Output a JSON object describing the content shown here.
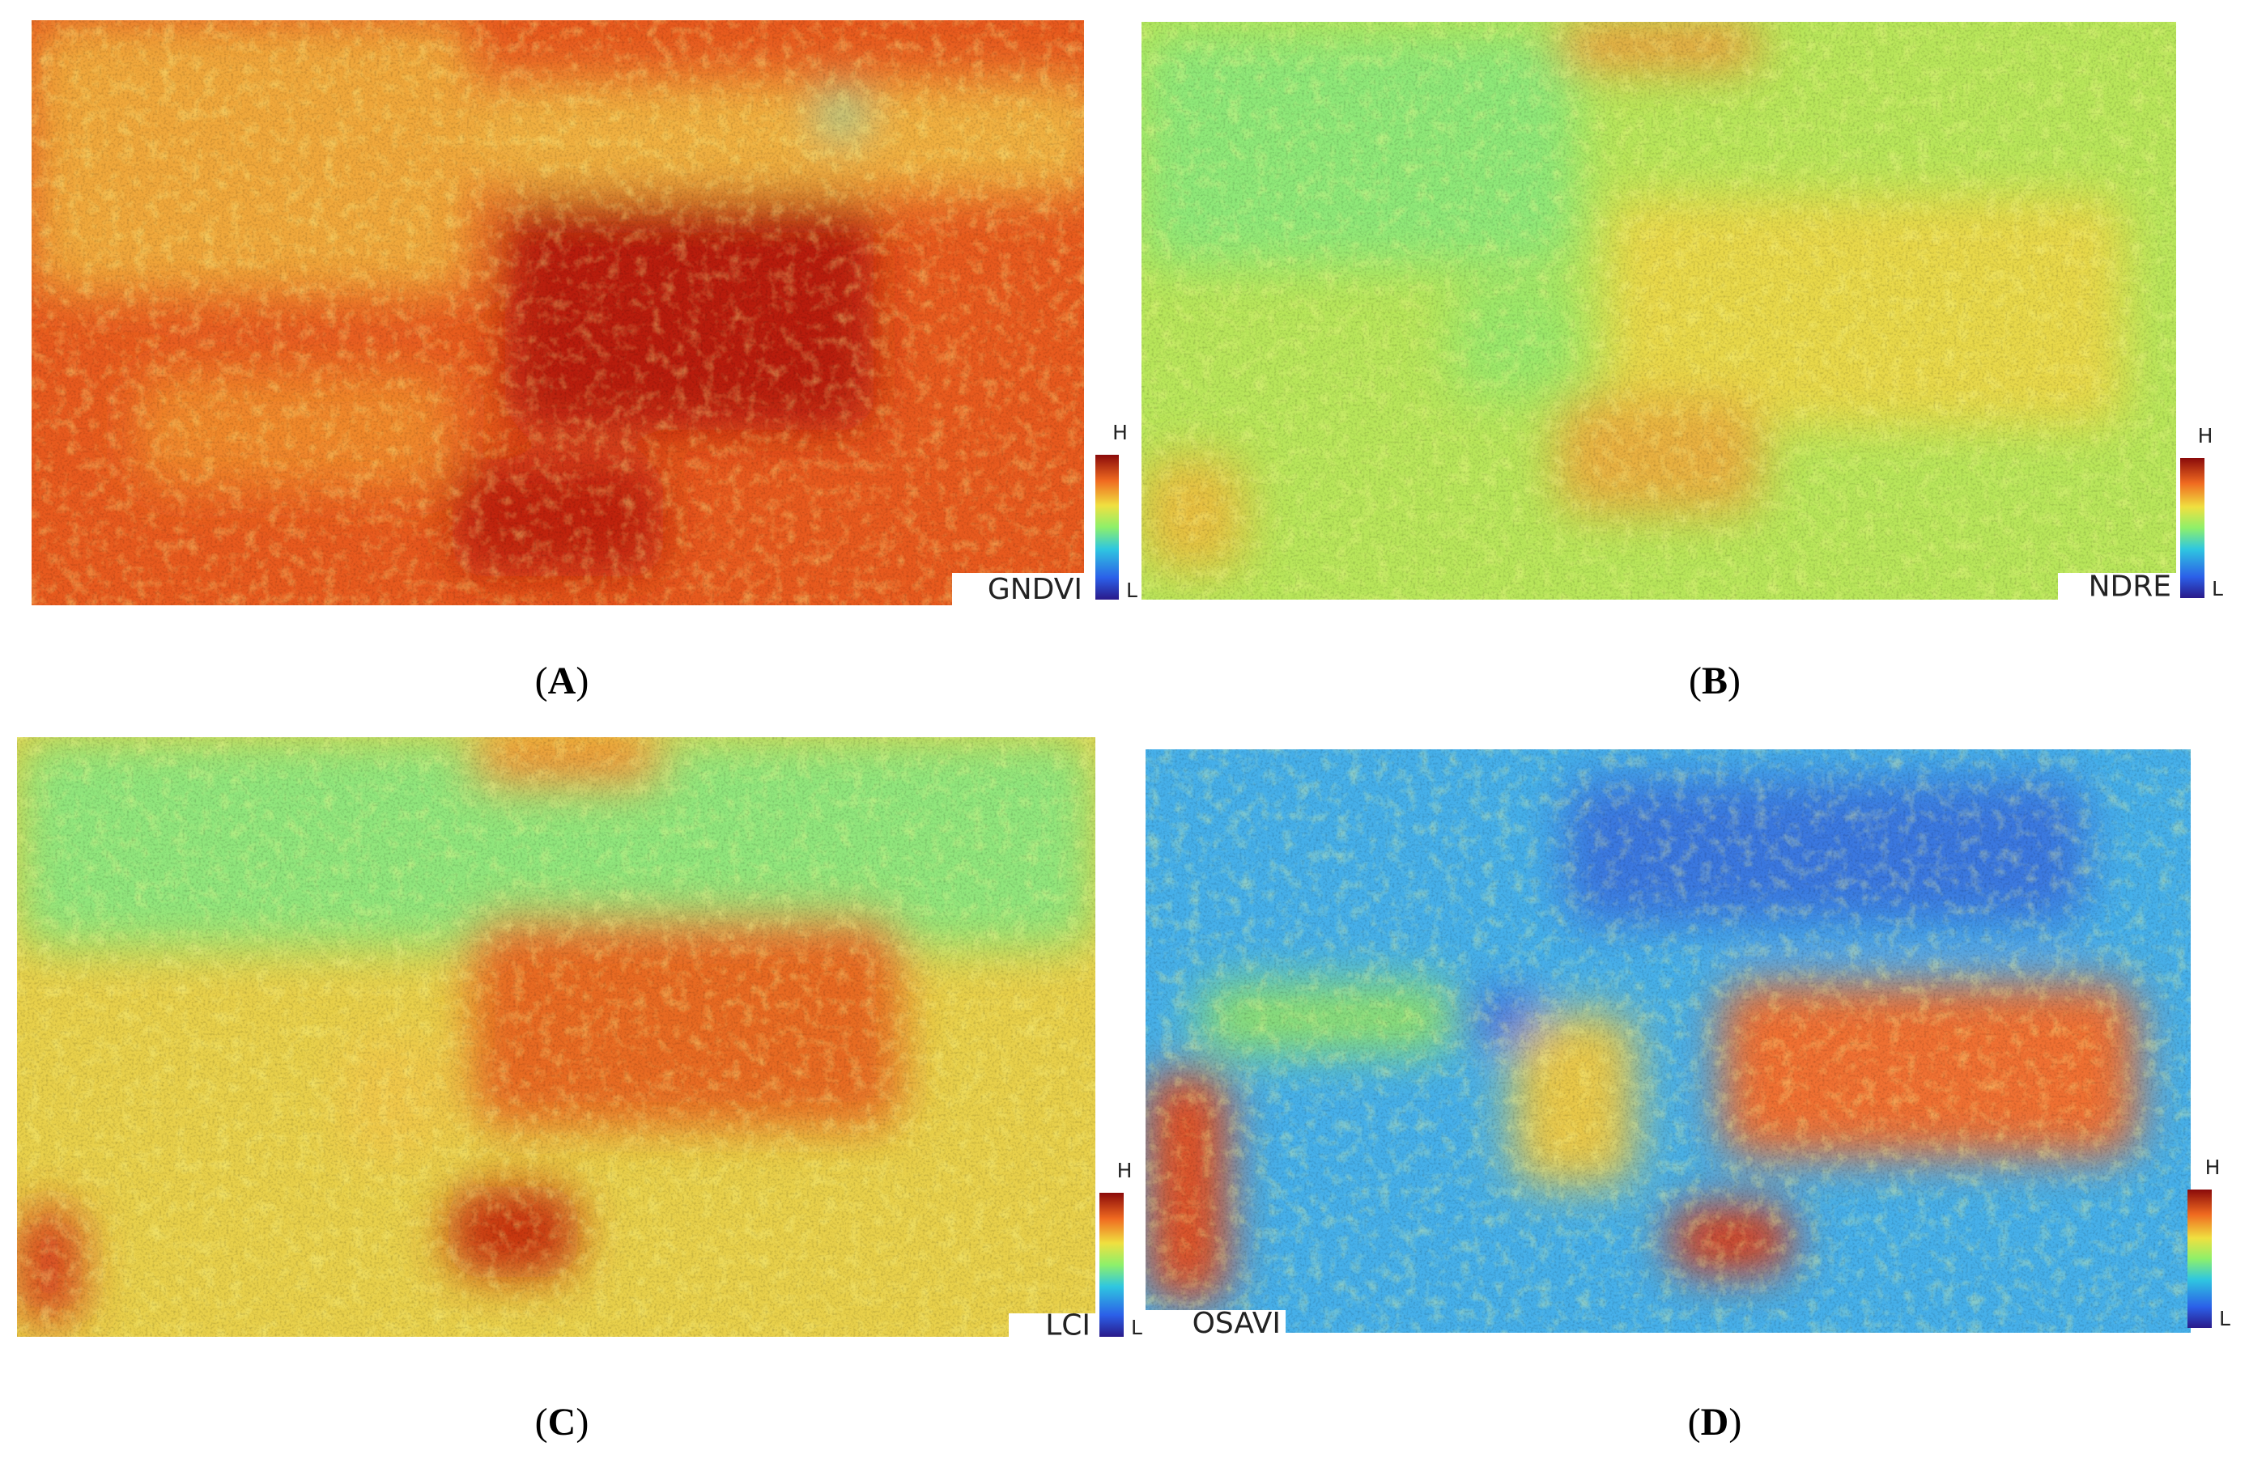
{
  "panels": [
    {
      "index": "GNDVI",
      "high": "H",
      "low": "L",
      "caption": [
        "(",
        "A",
        ")"
      ]
    },
    {
      "index": "NDRE",
      "high": "H",
      "low": "L",
      "caption": [
        "(",
        "B",
        ")"
      ]
    },
    {
      "index": "LCI",
      "high": "H",
      "low": "L",
      "caption": [
        "(",
        "C",
        ")"
      ]
    },
    {
      "index": "OSAVI",
      "high": "H",
      "low": "L",
      "caption": [
        "(",
        "D",
        ")"
      ]
    }
  ]
}
